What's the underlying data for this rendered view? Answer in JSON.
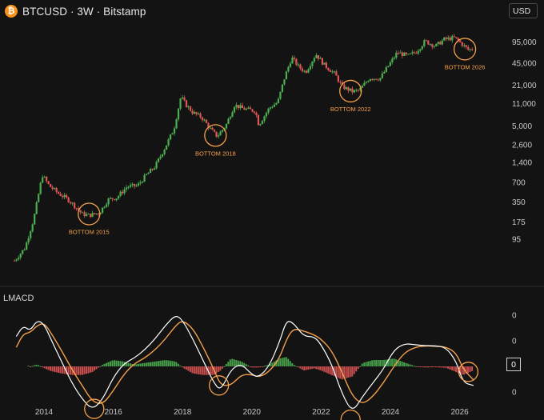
{
  "header": {
    "logo_glyph": "₿",
    "title": "BTCUSD · 3W · Bitstamp",
    "currency_button": "USD"
  },
  "indicator": {
    "label": "LMACD",
    "current_value": "0"
  },
  "colors": {
    "background": "#131313",
    "up_candle": "#4caf50",
    "down_candle": "#e05555",
    "annotation": "#f5a04a",
    "macd_line": "#ffffff",
    "signal_line": "#f5a04a",
    "hist_positive": "#4caf50",
    "hist_negative": "#e05555"
  },
  "chart_data": [
    {
      "type": "line",
      "title": "",
      "scale": "log",
      "price_axis_labels": [
        "95,000",
        "45,000",
        "21,000",
        "11,000",
        "5,000",
        "2,600",
        "1,400",
        "700",
        "350",
        "175",
        "95"
      ],
      "price_axis_values": [
        95000,
        45000,
        21000,
        11000,
        5000,
        2600,
        1400,
        700,
        350,
        175,
        95
      ],
      "x_axis_labels": [
        "2014",
        "2016",
        "2018",
        "2020",
        "2022",
        "2024",
        "2026"
      ],
      "x_axis_years": [
        2014,
        2016,
        2018,
        2020,
        2022,
        2024,
        2026
      ],
      "x": [
        2013.15,
        2013.45,
        2013.7,
        2013.95,
        2014.15,
        2014.4,
        2014.7,
        2014.9,
        2015.1,
        2015.3,
        2015.6,
        2015.85,
        2016.1,
        2016.4,
        2016.7,
        2016.95,
        2017.2,
        2017.5,
        2017.75,
        2017.95,
        2018.1,
        2018.3,
        2018.55,
        2018.85,
        2019.0,
        2019.25,
        2019.5,
        2019.75,
        2020.1,
        2020.2,
        2020.5,
        2020.75,
        2020.95,
        2021.15,
        2021.35,
        2021.55,
        2021.85,
        2022.1,
        2022.4,
        2022.6,
        2022.9,
        2023.1,
        2023.4,
        2023.7,
        2023.95,
        2024.2,
        2024.5,
        2024.75,
        2025.0,
        2025.3,
        2025.55,
        2025.85,
        2026.05,
        2026.25,
        2026.4
      ],
      "close": [
        45,
        70,
        190,
        900,
        620,
        480,
        380,
        300,
        230,
        220,
        240,
        380,
        410,
        600,
        620,
        900,
        1200,
        2400,
        4500,
        14000,
        10500,
        8000,
        6800,
        4200,
        3500,
        5100,
        10500,
        9200,
        8500,
        5200,
        9400,
        11600,
        28000,
        55000,
        40000,
        33000,
        62000,
        42000,
        31000,
        20000,
        16800,
        17500,
        27000,
        26500,
        42000,
        66000,
        58000,
        68000,
        98000,
        82000,
        104000,
        110000,
        90000,
        72000,
        76000
      ],
      "annotations": [
        {
          "label": "BOTTOM 2015",
          "x": 2015.3,
          "y": 230
        },
        {
          "label": "BOTTOM 2018",
          "x": 2018.95,
          "y": 3600
        },
        {
          "label": "BOTTOM 2022",
          "x": 2022.85,
          "y": 17000
        },
        {
          "label": "BOTTOM 2026",
          "x": 2026.15,
          "y": 74000
        }
      ]
    },
    {
      "type": "line",
      "title": "LMACD",
      "y_axis_labels": [
        "0",
        "0",
        "0",
        "0"
      ],
      "x": [
        2013.2,
        2013.4,
        2013.6,
        2013.8,
        2014.0,
        2014.2,
        2014.5,
        2014.8,
        2015.1,
        2015.4,
        2015.7,
        2016.0,
        2016.3,
        2016.6,
        2016.9,
        2017.2,
        2017.5,
        2017.8,
        2018.0,
        2018.3,
        2018.6,
        2018.9,
        2019.1,
        2019.4,
        2019.7,
        2020.0,
        2020.2,
        2020.5,
        2020.8,
        2021.0,
        2021.2,
        2021.5,
        2021.8,
        2022.0,
        2022.3,
        2022.6,
        2022.9,
        2023.2,
        2023.5,
        2023.8,
        2024.1,
        2024.4,
        2024.7,
        2025.0,
        2025.3,
        2025.6,
        2025.9,
        2026.1,
        2026.4
      ],
      "series": [
        {
          "values": [
            0.55,
            0.75,
            0.65,
            0.85,
            0.78,
            0.5,
            0.1,
            -0.3,
            -0.6,
            -0.8,
            -0.6,
            -0.2,
            0.05,
            0.15,
            0.3,
            0.5,
            0.75,
            0.95,
            0.85,
            0.5,
            0.1,
            -0.3,
            -0.45,
            -0.05,
            0.05,
            -0.15,
            -0.2,
            0.0,
            0.45,
            0.85,
            0.8,
            0.55,
            0.55,
            0.4,
            0.05,
            -0.5,
            -0.85,
            -0.55,
            -0.3,
            -0.05,
            0.3,
            0.42,
            0.4,
            0.38,
            0.38,
            0.35,
            0.1,
            -0.3,
            -0.35
          ]
        },
        {
          "values": [
            0.35,
            0.6,
            0.62,
            0.75,
            0.8,
            0.62,
            0.3,
            -0.05,
            -0.35,
            -0.65,
            -0.7,
            -0.45,
            -0.15,
            0.05,
            0.15,
            0.3,
            0.5,
            0.75,
            0.85,
            0.7,
            0.35,
            -0.05,
            -0.35,
            -0.35,
            -0.15,
            -0.15,
            -0.2,
            -0.1,
            0.15,
            0.5,
            0.7,
            0.65,
            0.58,
            0.5,
            0.3,
            -0.1,
            -0.55,
            -0.7,
            -0.55,
            -0.3,
            0.0,
            0.25,
            0.35,
            0.38,
            0.37,
            0.36,
            0.25,
            -0.05,
            -0.25
          ]
        }
      ]
    }
  ]
}
